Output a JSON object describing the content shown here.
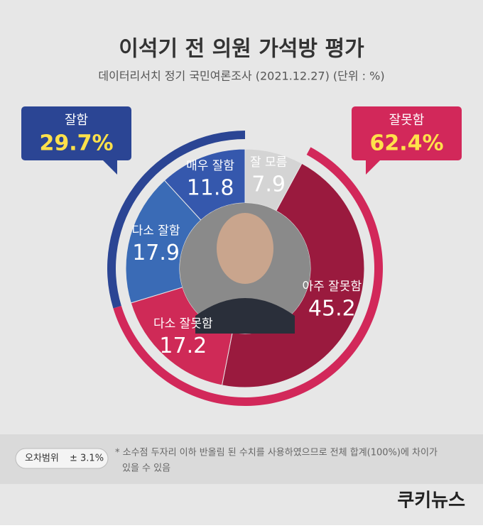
{
  "chart_data": {
    "type": "donut",
    "title": "이석기 전 의원 가석방 평가",
    "subtitle": "데이터리서치 정기 국민여론조사 (2021.12.27)  (단위 : %)",
    "categories": [
      "잘 모름",
      "아주 잘못함",
      "다소 잘못함",
      "다소 잘함",
      "매우 잘함"
    ],
    "values": [
      7.9,
      45.2,
      17.2,
      17.9,
      11.8
    ],
    "colors": [
      "#d4d4d4",
      "#9a1a3e",
      "#cf2a57",
      "#3a6bb6",
      "#3558ad"
    ],
    "groups": [
      {
        "name": "잘함",
        "value": 29.7,
        "value_label": "29.7%",
        "color": "#2b4594"
      },
      {
        "name": "잘못함",
        "value": 62.4,
        "value_label": "62.4%",
        "color": "#d2285a"
      }
    ]
  },
  "margin_of_error": {
    "label": "오차범위",
    "value": "± 3.1%"
  },
  "footnote": [
    "* 소수점 두자리 이하 반올림 된 수치를 사용하였으므로 전체 합계(100%)에 차이가",
    "있을 수 있음"
  ],
  "logo": "쿠키뉴스"
}
